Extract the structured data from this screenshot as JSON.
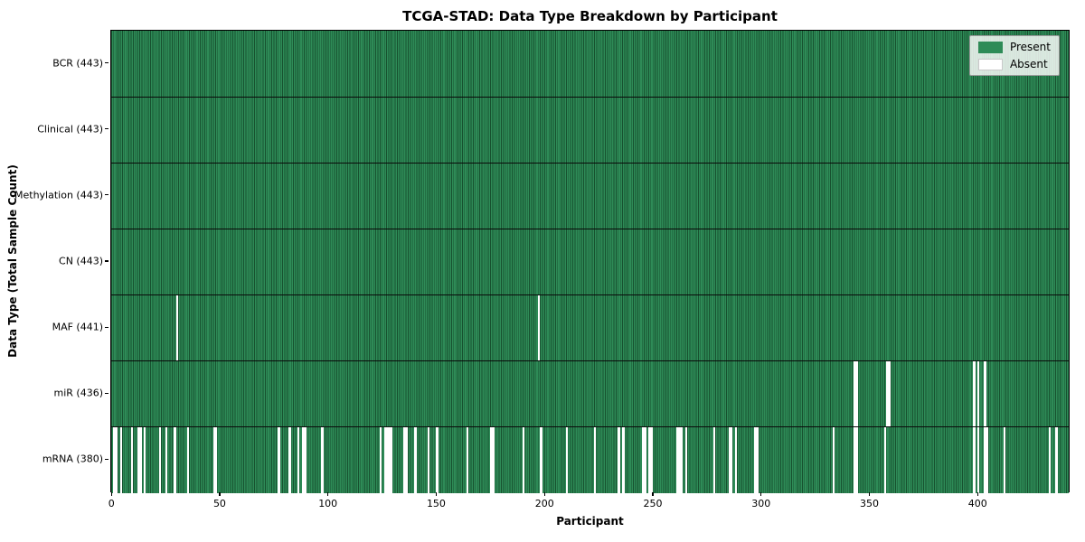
{
  "title": "TCGA-STAD: Data Type Breakdown by Participant",
  "x_axis": {
    "label": "Participant",
    "ticks": [
      0,
      50,
      100,
      150,
      200,
      250,
      300,
      350,
      400
    ]
  },
  "y_axis": {
    "label": "Data Type (Total Sample Count)"
  },
  "legend": {
    "items": [
      {
        "label": "Present",
        "color": "#2e8b57"
      },
      {
        "label": "Absent",
        "color": "#ffffff"
      }
    ]
  },
  "chart_data": {
    "type": "heatmap",
    "title": "TCGA-STAD: Data Type Breakdown by Participant",
    "xlabel": "Participant",
    "ylabel": "Data Type (Total Sample Count)",
    "x_range": [
      0,
      443
    ],
    "n_participants": 443,
    "colors": {
      "present": "#2e8b57",
      "absent": "#ffffff",
      "cell_edge": "#17512f",
      "boundary": "#0a0a0a"
    },
    "legend_position": "upper right",
    "rows": [
      {
        "label": "BCR",
        "total": 443,
        "tick_label": "BCR (443)",
        "absent": []
      },
      {
        "label": "Clinical",
        "total": 443,
        "tick_label": "Clinical (443)",
        "absent": []
      },
      {
        "label": "Methylation",
        "total": 443,
        "tick_label": "Methylation (443)",
        "absent": []
      },
      {
        "label": "CN",
        "total": 443,
        "tick_label": "CN (443)",
        "absent": []
      },
      {
        "label": "MAF",
        "total": 441,
        "tick_label": "MAF (441)",
        "absent": [
          30,
          197
        ]
      },
      {
        "label": "miR",
        "total": 436,
        "tick_label": "miR (436)",
        "absent": [
          343,
          344,
          358,
          359,
          398,
          400,
          403
        ]
      },
      {
        "label": "mRNA",
        "total": 380,
        "tick_label": "mRNA (380)",
        "absent": [
          1,
          2,
          4,
          9,
          12,
          13,
          15,
          22,
          25,
          29,
          35,
          47,
          48,
          77,
          82,
          86,
          88,
          89,
          97,
          124,
          126,
          127,
          128,
          129,
          135,
          136,
          140,
          146,
          150,
          164,
          175,
          176,
          190,
          198,
          210,
          223,
          234,
          236,
          245,
          246,
          248,
          249,
          261,
          262,
          263,
          265,
          278,
          285,
          286,
          288,
          297,
          298,
          333,
          343,
          344,
          357,
          398,
          400,
          403,
          404,
          412,
          433,
          436
        ]
      }
    ]
  }
}
